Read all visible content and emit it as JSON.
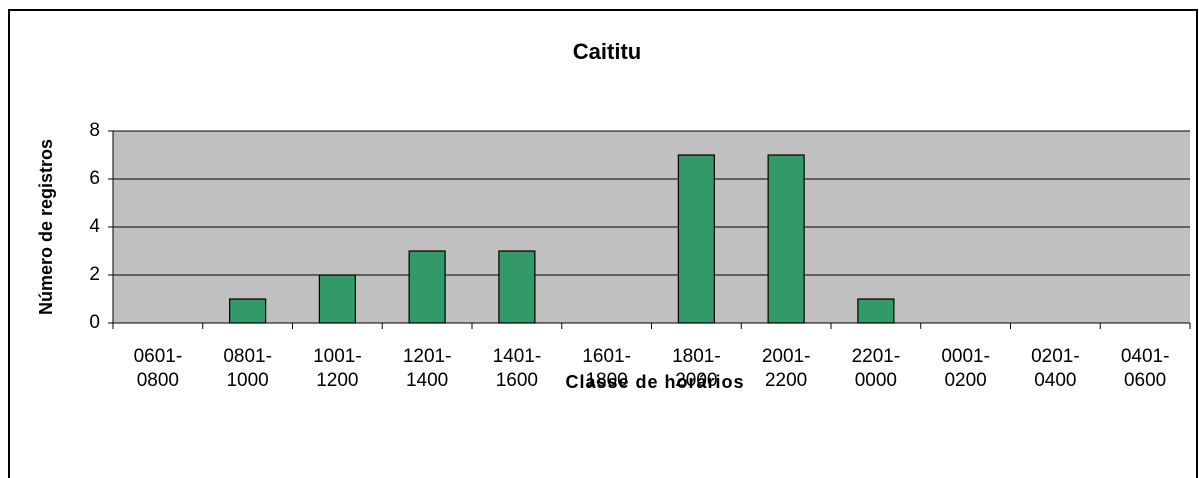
{
  "chart_data": {
    "type": "bar",
    "title": "Caititu",
    "x_label": "Classe de horários",
    "y_label": "Número de registros",
    "categories": [
      "0601-0800",
      "0801-1000",
      "1001-1200",
      "1201-1400",
      "1401-1600",
      "1601-1800",
      "1801-2000",
      "2001-2200",
      "2201-0000",
      "0001-0200",
      "0201-0400",
      "0401-0600"
    ],
    "values": [
      0,
      1,
      2,
      3,
      3,
      0,
      7,
      7,
      1,
      0,
      0,
      0
    ],
    "color": "#339966",
    "ylim": [
      0,
      8
    ],
    "yticks": [
      0,
      2,
      4,
      6,
      8
    ],
    "grid": true
  }
}
